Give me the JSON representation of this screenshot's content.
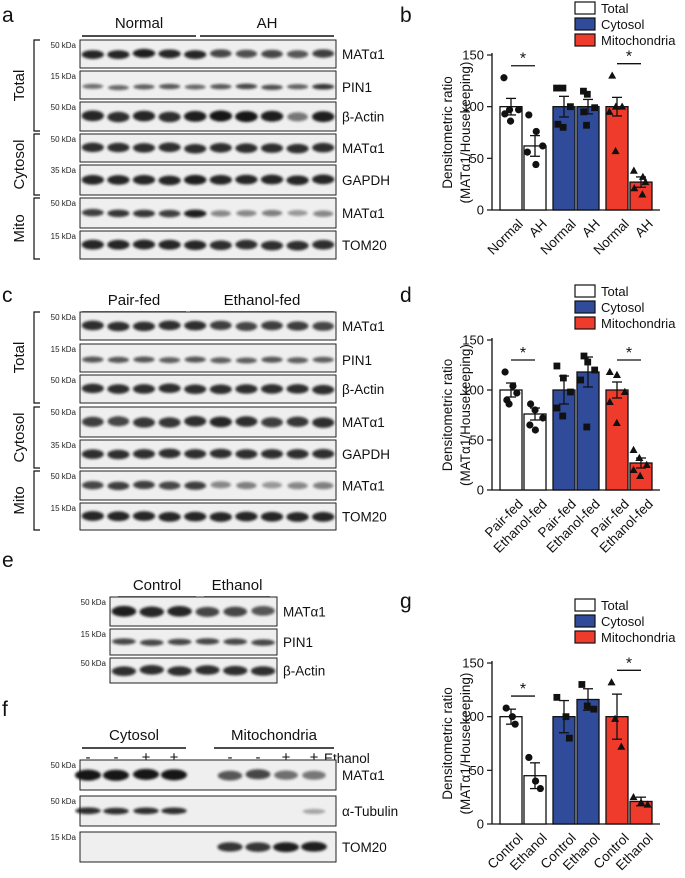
{
  "colors": {
    "total": "#ffffff",
    "cytosol": "#2f4b9a",
    "mitochondria": "#ee3b2c",
    "band": "#141414",
    "membrane": "#efefef"
  },
  "panels": [
    {
      "label": "a",
      "groups": [
        "Normal",
        "AH"
      ],
      "sections": [
        "Total",
        "Cytosol",
        "Mito"
      ],
      "strips": [
        {
          "kda": "50 kDa",
          "protein": "MATα1"
        },
        {
          "kda": "15 kDa",
          "protein": "PIN1"
        },
        {
          "kda": "50 kDa",
          "protein": "β-Actin"
        },
        {
          "kda": "50 kDa",
          "protein": "MATα1"
        },
        {
          "kda": "35 kDa",
          "protein": "GAPDH"
        },
        {
          "kda": "50 kDa",
          "protein": "MATα1"
        },
        {
          "kda": "15 kDa",
          "protein": "TOM20"
        }
      ]
    },
    {
      "label": "c",
      "groups": [
        "Pair-fed",
        "Ethanol-fed"
      ],
      "sections": [
        "Total",
        "Cytosol",
        "Mito"
      ],
      "strips": [
        {
          "kda": "50 kDa",
          "protein": "MATα1"
        },
        {
          "kda": "15 kDa",
          "protein": "PIN1"
        },
        {
          "kda": "50 kDa",
          "protein": "β-Actin"
        },
        {
          "kda": "50 kDa",
          "protein": "MATα1"
        },
        {
          "kda": "35 kDa",
          "protein": "GAPDH"
        },
        {
          "kda": "50 kDa",
          "protein": "MATα1"
        },
        {
          "kda": "15 kDa",
          "protein": "TOM20"
        }
      ]
    },
    {
      "label": "e",
      "groups": [
        "Control",
        "Ethanol"
      ],
      "strips": [
        {
          "kda": "50 kDa",
          "protein": "MATα1"
        },
        {
          "kda": "15 kDa",
          "protein": "PIN1"
        },
        {
          "kda": "50 kDa",
          "protein": "β-Actin"
        }
      ]
    },
    {
      "label": "f",
      "groups": [
        "Cytosol",
        "Mitochondria"
      ],
      "treatment_label": "Ethanol",
      "treatment_marks": [
        "-",
        "-",
        "+",
        "+",
        "-",
        "-",
        "+",
        "+"
      ],
      "strips": [
        {
          "kda": "50 kDa",
          "protein": "MATα1"
        },
        {
          "kda": "50 kDa",
          "protein": "α-Tubulin"
        },
        {
          "kda": "15 kDa",
          "protein": "TOM20"
        }
      ]
    }
  ],
  "chart_data": [
    {
      "panel": "b",
      "type": "bar",
      "ylabel": "Densitometric ratio (MATα1/Housekeeping)",
      "ylabel_lines": [
        "Densitometric ratio",
        "(MATα1/Housekeeping)"
      ],
      "ylim": [
        0,
        150
      ],
      "yticks": [
        "0",
        "50",
        "100",
        "150"
      ],
      "legend": [
        "Total",
        "Cytosol",
        "Mitochondria"
      ],
      "legend_position": "top-right",
      "categories": [
        "Normal",
        "AH",
        "Normal",
        "AH",
        "Normal",
        "AH"
      ],
      "bar_fractions": [
        "Total",
        "Total",
        "Cytosol",
        "Cytosol",
        "Mitochondria",
        "Mitochondria"
      ],
      "values": [
        100,
        62,
        100,
        100,
        100,
        27
      ],
      "errors": [
        8,
        10,
        10,
        7,
        9,
        5
      ],
      "points": [
        [
          128,
          97,
          97,
          93,
          86
        ],
        [
          92,
          76,
          62,
          56,
          44
        ],
        [
          118,
          118,
          100,
          83,
          80
        ],
        [
          115,
          112,
          99,
          95,
          82
        ],
        [
          130,
          100,
          100,
          95,
          57
        ],
        [
          38,
          32,
          27,
          21,
          15
        ]
      ],
      "markers": [
        "circle",
        "circle",
        "square",
        "square",
        "triangle",
        "triangle"
      ],
      "significance": [
        {
          "bars": [
            0,
            1
          ],
          "label": "*"
        },
        {
          "bars": [
            4,
            5
          ],
          "label": "*"
        }
      ]
    },
    {
      "panel": "d",
      "type": "bar",
      "ylabel": "Densitometric ratio (MATα1/Housekeeping)",
      "ylabel_lines": [
        "Densitometric ratio",
        "(MATα1/Housekeeping)"
      ],
      "ylim": [
        0,
        150
      ],
      "yticks": [
        "0",
        "50",
        "100",
        "150"
      ],
      "legend": [
        "Total",
        "Cytosol",
        "Mitochondria"
      ],
      "legend_position": "top-right",
      "categories": [
        "Pair-fed",
        "Ethanol-fed",
        "Pair-fed",
        "Ethanol-fed",
        "Pair-fed",
        "Ethanol-fed"
      ],
      "bar_fractions": [
        "Total",
        "Total",
        "Cytosol",
        "Cytosol",
        "Mitochondria",
        "Mitochondria"
      ],
      "values": [
        100,
        76,
        100,
        118,
        100,
        27
      ],
      "errors": [
        7,
        6,
        14,
        15,
        8,
        5
      ],
      "points": [
        [
          118,
          104,
          97,
          90,
          86
        ],
        [
          86,
          80,
          72,
          65,
          60
        ],
        [
          124,
          112,
          98,
          82,
          74
        ],
        [
          134,
          128,
          120,
          110,
          63
        ],
        [
          118,
          115,
          98,
          88,
          67
        ],
        [
          40,
          32,
          25,
          20,
          14
        ]
      ],
      "markers": [
        "circle",
        "circle",
        "square",
        "square",
        "triangle",
        "triangle"
      ],
      "significance": [
        {
          "bars": [
            0,
            1
          ],
          "label": "*"
        },
        {
          "bars": [
            4,
            5
          ],
          "label": "*"
        }
      ]
    },
    {
      "panel": "g",
      "type": "bar",
      "ylabel": "Densitometric ratio (MATα1/Housekeeping)",
      "ylabel_lines": [
        "Densitometric ratio",
        "(MATα1/Housekeeping)"
      ],
      "ylim": [
        0,
        150
      ],
      "yticks": [
        "0",
        "50",
        "100",
        "150"
      ],
      "legend": [
        "Total",
        "Cytosol",
        "Mitochondria"
      ],
      "legend_position": "top-right",
      "categories": [
        "Control",
        "Ethanol",
        "Control",
        "Ethanol",
        "Control",
        "Ethanol"
      ],
      "bar_fractions": [
        "Total",
        "Total",
        "Cytosol",
        "Cytosol",
        "Mitochondria",
        "Mitochondria"
      ],
      "values": [
        100,
        45,
        100,
        116,
        100,
        21
      ],
      "errors": [
        7,
        12,
        15,
        10,
        21,
        4
      ],
      "points": [
        [
          108,
          100,
          93
        ],
        [
          62,
          40,
          33
        ],
        [
          118,
          100,
          80
        ],
        [
          130,
          110,
          107
        ],
        [
          132,
          98,
          72
        ],
        [
          25,
          20,
          18
        ]
      ],
      "markers": [
        "circle",
        "circle",
        "square",
        "square",
        "triangle",
        "triangle"
      ],
      "significance": [
        {
          "bars": [
            0,
            1
          ],
          "label": "*"
        },
        {
          "bars": [
            4,
            5
          ],
          "label": "*"
        }
      ]
    }
  ]
}
